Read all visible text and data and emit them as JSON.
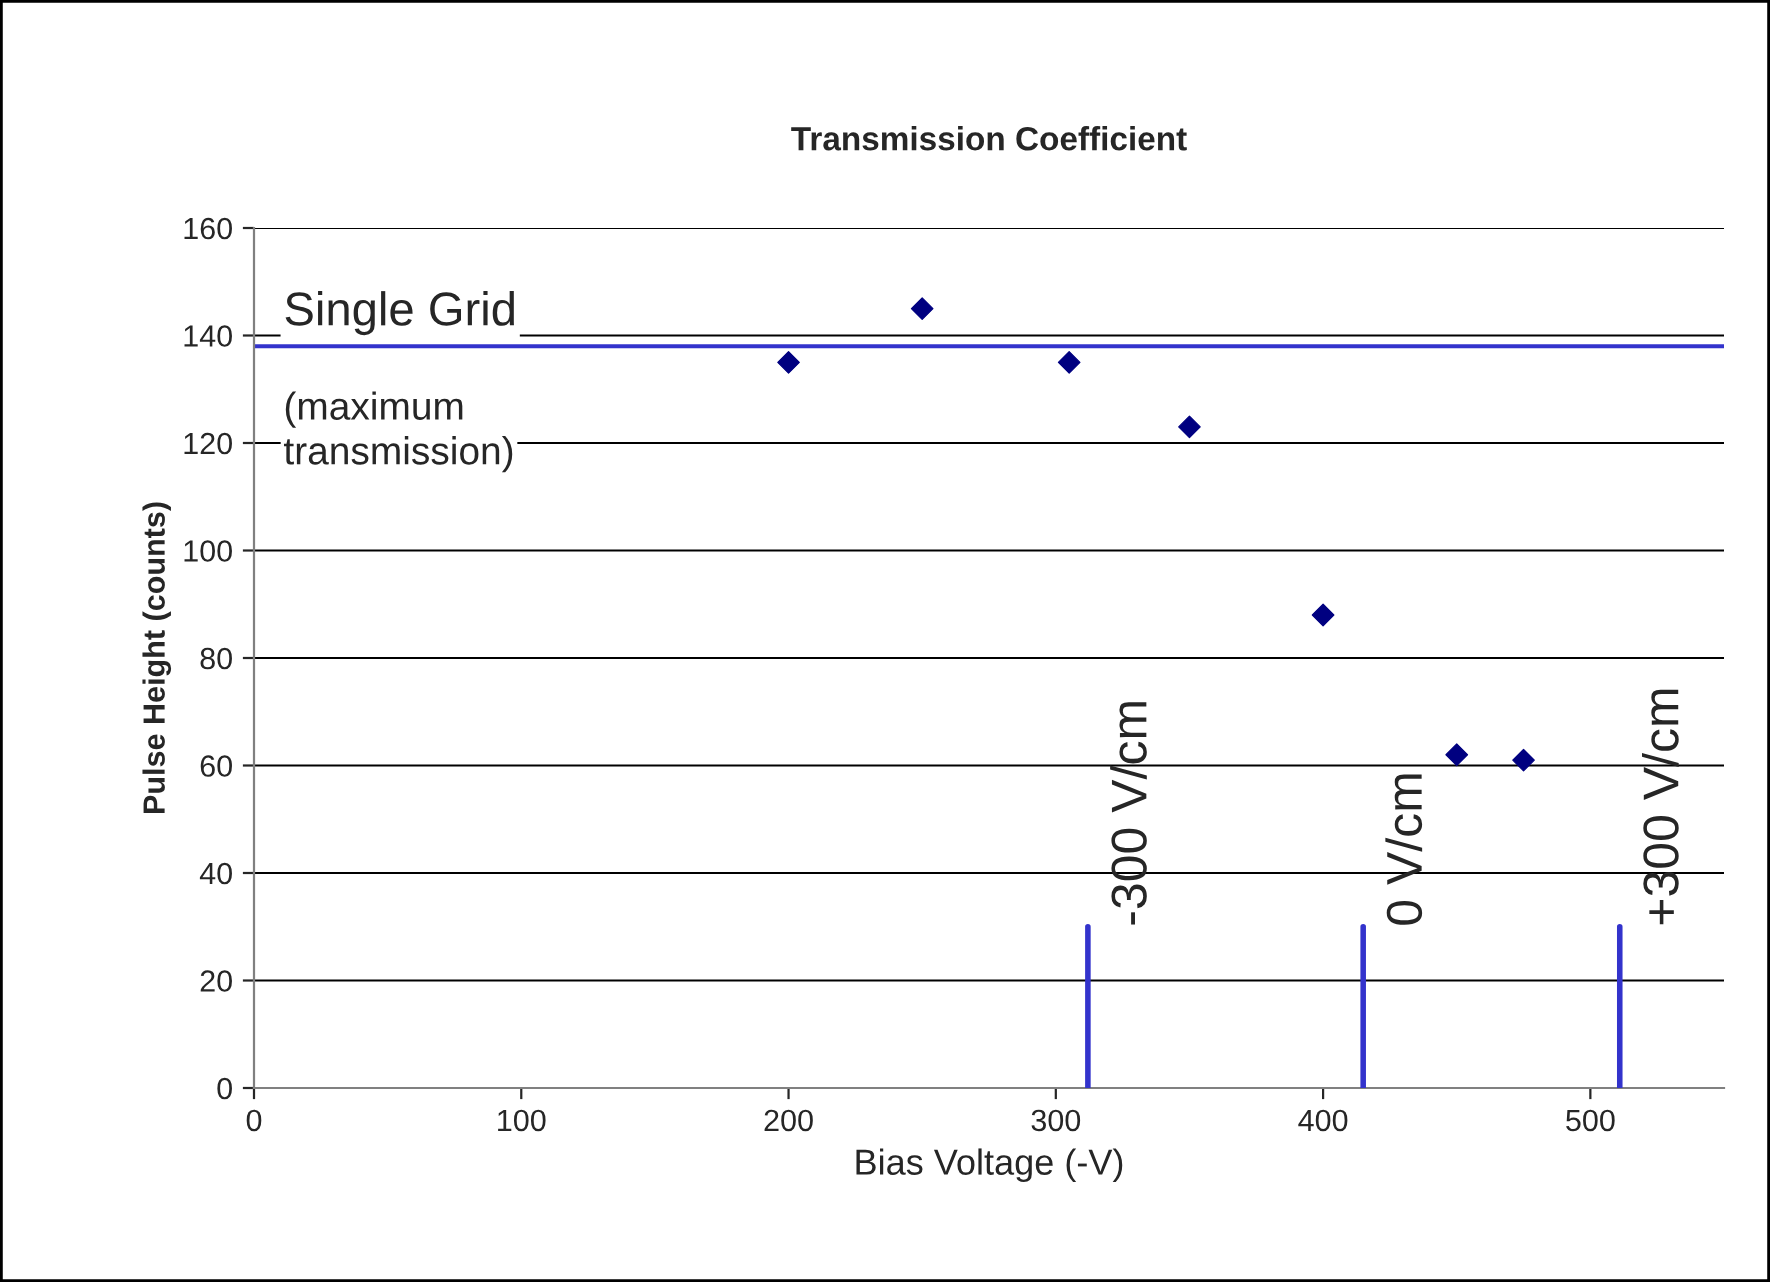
{
  "chart_data": {
    "type": "scatter",
    "title": "Transmission Coefficient",
    "xlabel": "Bias Voltage (-V)",
    "ylabel": "Pulse Height (counts)",
    "xlim": [
      0,
      550
    ],
    "xticks": [
      0,
      100,
      200,
      300,
      400,
      500
    ],
    "ylim": [
      0,
      160
    ],
    "yticks": [
      0,
      20,
      40,
      60,
      80,
      100,
      120,
      140,
      160
    ],
    "grid": "y",
    "legend": false,
    "series": [
      {
        "x": [
          200,
          250,
          305,
          350,
          400,
          450,
          475
        ],
        "values": [
          135,
          145,
          135,
          123,
          88,
          62,
          61
        ],
        "color": "#000080",
        "marker": "diamond"
      },
      {
        "type": "line",
        "name": "-300 V/cm",
        "x": [
          312,
          312
        ],
        "values": [
          0,
          30
        ],
        "color": "#3333cc"
      },
      {
        "type": "line",
        "name": "0 V/cm",
        "x": [
          415,
          415
        ],
        "values": [
          0,
          30
        ],
        "color": "#3333cc"
      },
      {
        "type": "line",
        "name": "+300 V/cm",
        "x": [
          511,
          511
        ],
        "values": [
          0,
          30
        ],
        "color": "#3333cc"
      }
    ],
    "ref_lines": [
      {
        "axis": "y",
        "value": 138,
        "label": "Single Grid",
        "color": "#3333cc"
      }
    ],
    "annotations": [
      "(maximum\ntransmission)"
    ]
  }
}
